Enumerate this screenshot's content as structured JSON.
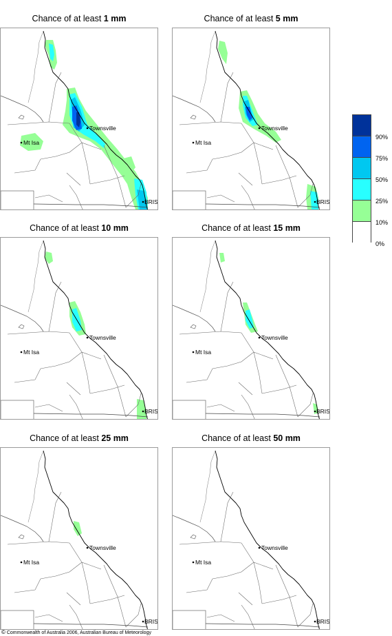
{
  "panels": [
    {
      "id": "p1",
      "prefix": "Chance of at least ",
      "amount": "1 mm",
      "level": 0
    },
    {
      "id": "p5",
      "prefix": "Chance of at least ",
      "amount": "5 mm",
      "level": 1
    },
    {
      "id": "p10",
      "prefix": "Chance of at least ",
      "amount": "10 mm",
      "level": 2
    },
    {
      "id": "p15",
      "prefix": "Chance of at least ",
      "amount": "15 mm",
      "level": 3
    },
    {
      "id": "p25",
      "prefix": "Chance of at least ",
      "amount": "25 mm",
      "level": 4
    },
    {
      "id": "p50",
      "prefix": "Chance of at least ",
      "amount": "50 mm",
      "level": 5
    }
  ],
  "places": {
    "townsville": "Townsville",
    "mt_isa": "Mt Isa",
    "brisbane": "BRIS"
  },
  "legend": {
    "categories": [
      {
        "label": "90%",
        "color": "#00329a"
      },
      {
        "label": "75%",
        "color": "#0064f0"
      },
      {
        "label": "50%",
        "color": "#00c8f0"
      },
      {
        "label": "25%",
        "color": "#28ffff"
      },
      {
        "label": "10%",
        "color": "#96ff96"
      },
      {
        "label": "0%",
        "color": "#ffffff"
      }
    ]
  },
  "footer": {
    "symbol": "©",
    "text": " Commonwealth of Australia 2006, Australian Bureau of Meteorology"
  }
}
